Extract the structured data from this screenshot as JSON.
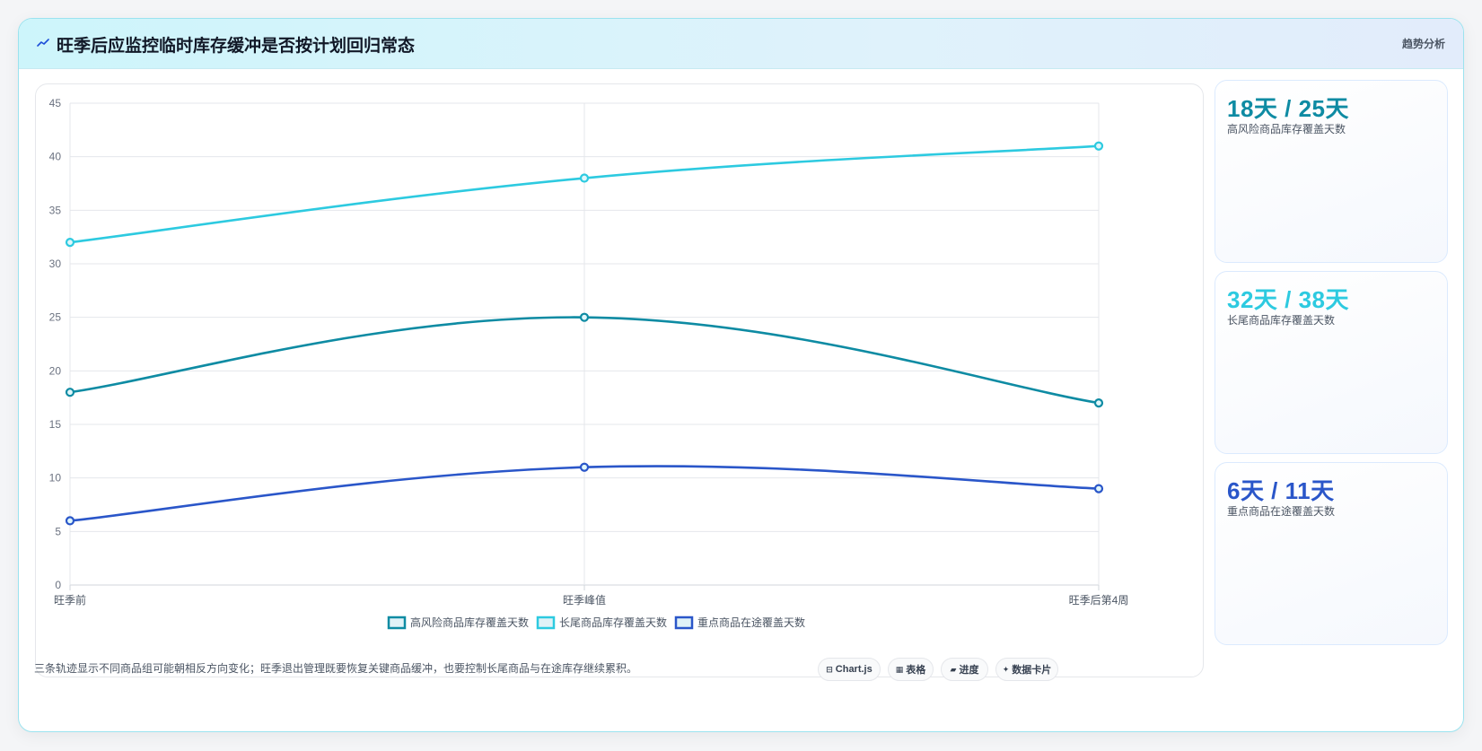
{
  "header": {
    "title": "旺季后应监控临时库存缓冲是否按计划回归常态",
    "tag": "趋势分析",
    "icon": "trend-icon"
  },
  "kpis": [
    {
      "value": "18天 / 25天",
      "label": "高风险商品库存覆盖天数",
      "color": "#0e8ba3"
    },
    {
      "value": "32天 / 38天",
      "label": "长尾商品库存覆盖天数",
      "color": "#2dcae0"
    },
    {
      "value": "6天 / 11天",
      "label": "重点商品在途覆盖天数",
      "color": "#2a56c9"
    }
  ],
  "footnote": "三条轨迹显示不同商品组可能朝相反方向变化；旺季退出管理既要恢复关键商品缓冲，也要控制长尾商品与在途库存继续累积。",
  "chips": [
    {
      "label": "Chart.js",
      "icon": "chart-icon",
      "glyph": "⊟"
    },
    {
      "label": "表格",
      "icon": "table-icon",
      "glyph": "▦"
    },
    {
      "label": "进度",
      "icon": "progress-icon",
      "glyph": "▰"
    },
    {
      "label": "数据卡片",
      "icon": "card-icon",
      "glyph": "✦"
    }
  ],
  "chart_data": {
    "type": "line",
    "categories": [
      "旺季前",
      "旺季峰值",
      "旺季后第4周"
    ],
    "series": [
      {
        "name": "高风险商品库存覆盖天数",
        "values": [
          18,
          25,
          17
        ],
        "color": "#0e8ba3"
      },
      {
        "name": "长尾商品库存覆盖天数",
        "values": [
          32,
          38,
          41
        ],
        "color": "#2dcae0"
      },
      {
        "name": "重点商品在途覆盖天数",
        "values": [
          6,
          11,
          9
        ],
        "color": "#2a56c9"
      }
    ],
    "ylim": [
      0,
      45
    ],
    "yticks": [
      0,
      5,
      10,
      15,
      20,
      25,
      30,
      35,
      40,
      45
    ],
    "grid": true,
    "legend": "bottom"
  }
}
